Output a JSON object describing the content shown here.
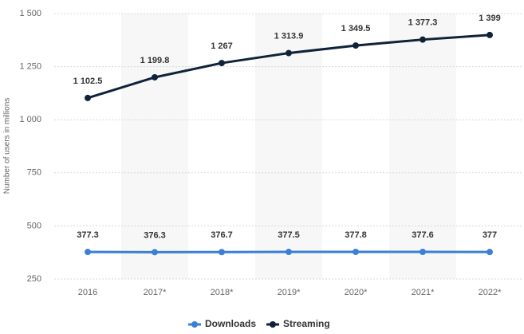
{
  "chart_data": {
    "type": "line",
    "y_label": "Number of users in millions",
    "categories": [
      "2016",
      "2017*",
      "2018*",
      "2019*",
      "2020*",
      "2021*",
      "2022*"
    ],
    "series": [
      {
        "name": "Downloads",
        "color": "#3a80d6",
        "values": [
          377.3,
          376.3,
          376.7,
          377.5,
          377.8,
          377.6,
          377
        ]
      },
      {
        "name": "Streaming",
        "color": "#0e2339",
        "values": [
          1102.5,
          1199.8,
          1267,
          1313.9,
          1349.5,
          1377.3,
          1399
        ],
        "value_labels": [
          "1 102.5",
          "1 199.8",
          "1 267",
          "1 313.9",
          "1 349.5",
          "1 377.3",
          "1 399"
        ]
      }
    ],
    "ylim": [
      250,
      1500
    ],
    "yticks": [
      250,
      500,
      750,
      {
        "value": 1000,
        "label": "1 000"
      },
      {
        "value": 1250,
        "label": "1 250"
      },
      {
        "value": 1500,
        "label": "1 500"
      }
    ],
    "grid": true,
    "legend": "bottom"
  }
}
